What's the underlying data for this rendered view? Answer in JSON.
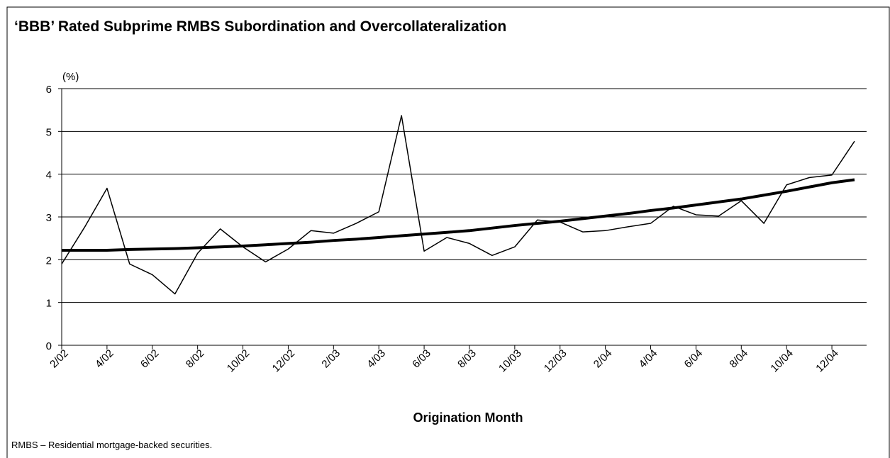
{
  "chart_data": {
    "type": "line",
    "title": "‘BBB’ Rated Subprime RMBS Subordination and Overcollateralization",
    "y_unit_label": "(%)",
    "x_label": "Origination Month",
    "footnote": "RMBS – Residential mortgage-backed securities.",
    "categories": [
      "2/02",
      null,
      "4/02",
      null,
      "6/02",
      null,
      "8/02",
      null,
      "10/02",
      null,
      "12/02",
      null,
      "2/03",
      null,
      "4/03",
      null,
      "6/03",
      null,
      "8/03",
      null,
      "10/03",
      null,
      "12/03",
      null,
      "2/04",
      null,
      "4/04",
      null,
      "6/04",
      null,
      "8/04",
      null,
      "10/04",
      null,
      "12/04",
      null
    ],
    "series": [
      {
        "color": "#000000",
        "width": 1.5,
        "values": [
          1.9,
          2.75,
          3.67,
          1.9,
          1.65,
          1.2,
          2.15,
          2.72,
          2.3,
          1.95,
          2.25,
          2.68,
          2.62,
          2.85,
          3.12,
          5.37,
          2.2,
          2.52,
          2.38,
          2.1,
          2.3,
          2.93,
          2.88,
          2.65,
          2.68,
          2.77,
          2.85,
          3.25,
          3.05,
          3.02,
          3.38,
          2.85,
          3.75,
          3.92,
          3.98,
          4.77
        ]
      },
      {
        "color": "#000000",
        "width": 4,
        "values": [
          2.22,
          2.22,
          2.22,
          2.24,
          2.25,
          2.26,
          2.28,
          2.3,
          2.32,
          2.35,
          2.38,
          2.41,
          2.45,
          2.48,
          2.52,
          2.56,
          2.6,
          2.64,
          2.68,
          2.74,
          2.8,
          2.85,
          2.9,
          2.96,
          3.02,
          3.08,
          3.15,
          3.21,
          3.28,
          3.35,
          3.42,
          3.51,
          3.6,
          3.7,
          3.8,
          3.87
        ]
      }
    ],
    "ylim": [
      0,
      6
    ],
    "yticks": [
      0,
      1,
      2,
      3,
      4,
      5,
      6
    ],
    "grid": true
  }
}
